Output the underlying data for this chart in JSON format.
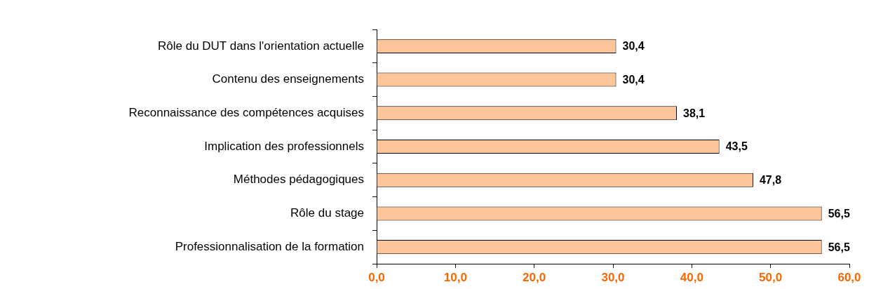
{
  "chart_data": {
    "type": "bar",
    "orientation": "horizontal",
    "categories": [
      "Rôle du DUT dans l'orientation actuelle",
      "Contenu des enseignements",
      "Reconnaissance des compétences acquises",
      "Implication des professionnels",
      "Méthodes pédagogiques",
      "Rôle du stage",
      "Professionnalisation de la formation"
    ],
    "values": [
      30.4,
      30.4,
      38.1,
      43.5,
      47.8,
      56.5,
      56.5
    ],
    "value_labels": [
      "30,4",
      "30,4",
      "38,1",
      "43,5",
      "47,8",
      "56,5",
      "56,5"
    ],
    "color": "#fcc59a",
    "xlim": [
      0,
      60
    ],
    "xticks": [
      {
        "value": 0,
        "label": "0,0"
      },
      {
        "value": 10,
        "label": "10,0"
      },
      {
        "value": 20,
        "label": "20,0"
      },
      {
        "value": 30,
        "label": "30,0"
      },
      {
        "value": 40,
        "label": "40,0"
      },
      {
        "value": 50,
        "label": "50,0"
      },
      {
        "value": 60,
        "label": "60,0"
      }
    ],
    "grid": false,
    "legend": false
  }
}
